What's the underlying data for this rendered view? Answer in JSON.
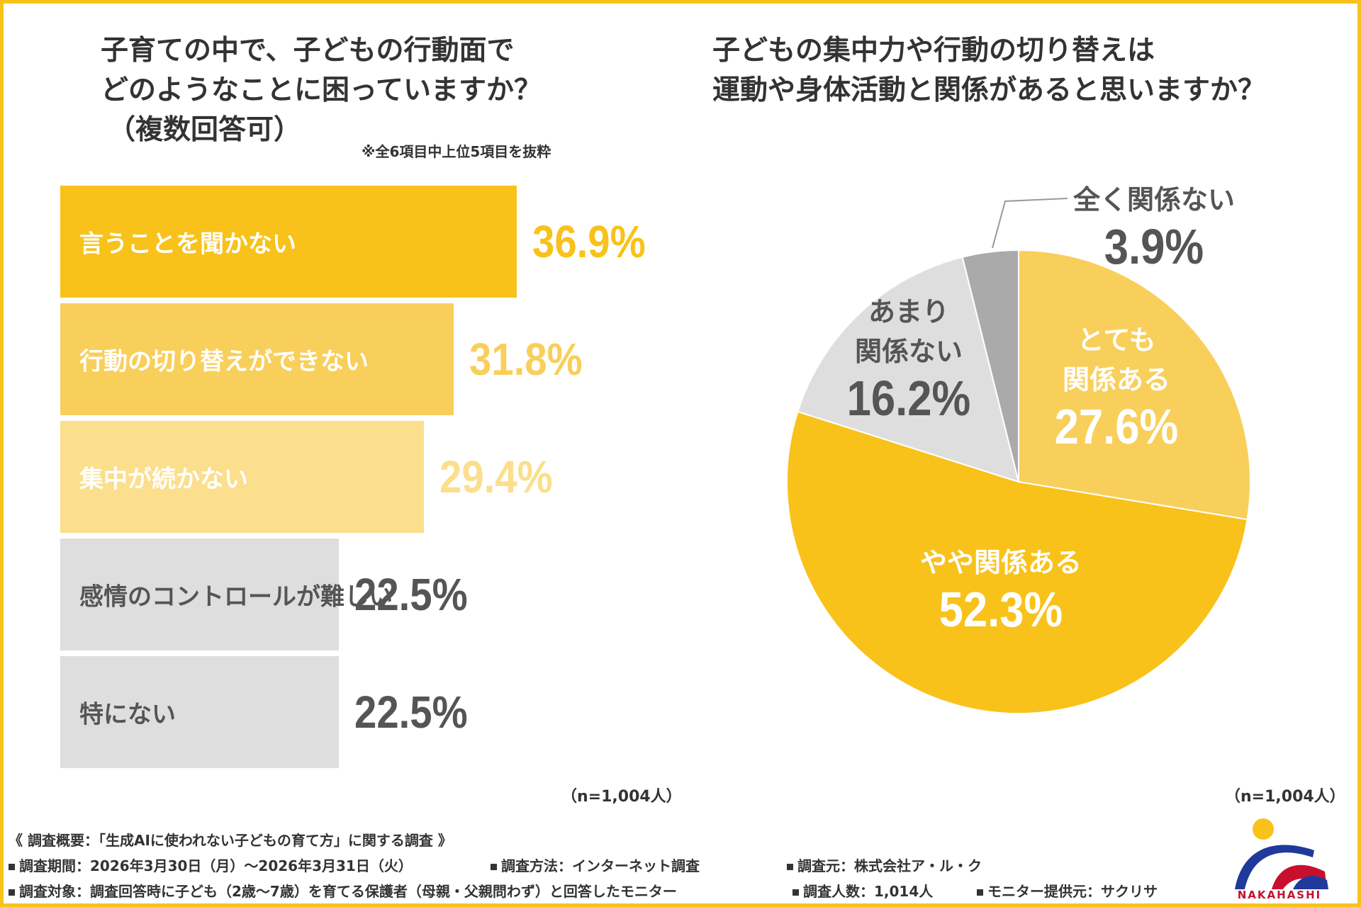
{
  "left_question": {
    "line1": "子育ての中で、子どもの行動面で",
    "line2": "どのようなことに困っていますか？",
    "line3": "（複数回答可）",
    "note": "※全6項目中上位5項目を抜粋",
    "n_label": "（n=1,004人）"
  },
  "right_question": {
    "line1": "子どもの集中力や行動の切り替えは",
    "line2": "運動や身体活動と関係があると思いますか？",
    "n_label": "（n=1,004人）"
  },
  "chart_data": [
    {
      "type": "bar",
      "orientation": "horizontal",
      "title": "子育ての中で、子どもの行動面でどのようなことに困っていますか？（複数回答可）",
      "categories": [
        "言うことを聞かない",
        "行動の切り替えができない",
        "集中が続かない",
        "感情のコントロールが難しい",
        "特にない"
      ],
      "values": [
        36.9,
        31.8,
        29.4,
        22.5,
        22.5
      ],
      "value_labels": [
        "36.9%",
        "31.8%",
        "29.4%",
        "22.5%",
        "22.5%"
      ],
      "bar_colors": [
        "#F8C21A",
        "#F9CF5B",
        "#FBDF8D",
        "#DEDEDE",
        "#DEDEDE"
      ],
      "label_colors": [
        "#FFFFFF",
        "#FFFFFF",
        "#FFFFFF",
        "#555555",
        "#555555"
      ],
      "value_colors": [
        "#F8C21A",
        "#F9CF5B",
        "#FBDF8D",
        "#555555",
        "#555555"
      ],
      "xlim": [
        0,
        37
      ]
    },
    {
      "type": "pie",
      "title": "子どもの集中力や行動の切り替えは運動や身体活動と関係があると思いますか？",
      "slices": [
        {
          "label": "とても関係ある",
          "line1": "とても",
          "line2": "関係ある",
          "value": 27.6,
          "display": "27.6%",
          "color": "#F9CF5B",
          "text_color": "#FFFFFF"
        },
        {
          "label": "やや関係ある",
          "line1": "やや関係ある",
          "value": 52.3,
          "display": "52.3%",
          "color": "#F8C21A",
          "text_color": "#FFFFFF"
        },
        {
          "label": "あまり関係ない",
          "line1": "あまり",
          "line2": "関係ない",
          "value": 16.2,
          "display": "16.2%",
          "color": "#DEDEDE",
          "text_color": "#555555"
        },
        {
          "label": "全く関係ない",
          "line1": "全く関係ない",
          "value": 3.9,
          "display": "3.9%",
          "color": "#AAAAAA",
          "text_color": "#555555"
        }
      ],
      "start": "12 o'clock",
      "direction": "clockwise"
    }
  ],
  "footer": {
    "survey_title": "《 調査概要：「生成AIに使われない子どもの育て方」に関する調査 》",
    "period": "調査期間：2026年3月30日（月）～2026年3月31日（火）",
    "method": "調査方法：インターネット調査",
    "source": "調査元：株式会社ア・ル・ク",
    "target": "調査対象：調査回答時に子ども（2歳～7歳）を育てる保護者（母親・父親問わず）と回答したモニター",
    "count": "調査人数：1,014人",
    "provider": "モニター提供元：サクリサ"
  },
  "logo": {
    "text": "NAKAHASHI",
    "icon": "nakahashi-logo-icon"
  },
  "colors": {
    "accent": "#F8C21A",
    "frame": "#F8C21A",
    "text_dark": "#333333",
    "text_gray": "#555555"
  }
}
